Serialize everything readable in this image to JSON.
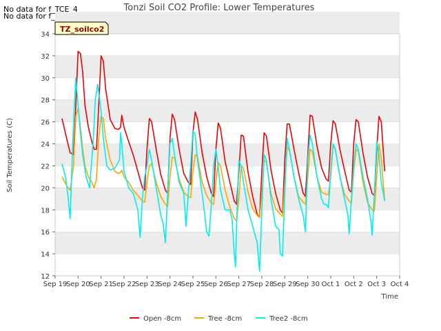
{
  "notes": [
    "No data for f_TCE_4",
    "No data for f_TCW_4"
  ],
  "site_label": "TZ_soilco2",
  "colors": {
    "open": "#ee0000",
    "tree": "#ffa500",
    "tree2": "#00eeee",
    "band": "#ececec",
    "grid": "#dcdcdc"
  },
  "chart_data": {
    "type": "line",
    "title": "Tonzi Soil CO2 Profile: Lower Temperatures",
    "xlabel": "Time",
    "ylabel": "Soil Temperatures (C)",
    "xlim": [
      0,
      15
    ],
    "ylim": [
      12,
      34
    ],
    "yticks": [
      12,
      14,
      16,
      18,
      20,
      22,
      24,
      26,
      28,
      30,
      32,
      34
    ],
    "xticks": [
      "Sep 19",
      "Sep 20",
      "Sep 21",
      "Sep 22",
      "Sep 23",
      "Sep 24",
      "Sep 25",
      "Sep 26",
      "Sep 27",
      "Sep 28",
      "Sep 29",
      "Sep 30",
      "Oct 1",
      "Oct 2",
      "Oct 3",
      "Oct 4"
    ],
    "grid": true,
    "legend_position": "bottom",
    "series": [
      {
        "name": "Open -8cm",
        "color": "#ee0000",
        "x": [
          0.3,
          0.5,
          0.65,
          0.8,
          0.9,
          1.0,
          1.1,
          1.2,
          1.3,
          1.45,
          1.6,
          1.7,
          1.8,
          1.9,
          2.0,
          2.1,
          2.2,
          2.4,
          2.6,
          2.75,
          2.85,
          2.9,
          3.0,
          3.2,
          3.4,
          3.6,
          3.8,
          3.9,
          4.0,
          4.1,
          4.2,
          4.4,
          4.6,
          4.8,
          4.9,
          5.0,
          5.1,
          5.2,
          5.4,
          5.6,
          5.8,
          5.9,
          6.0,
          6.1,
          6.2,
          6.4,
          6.6,
          6.8,
          6.9,
          7.0,
          7.1,
          7.2,
          7.4,
          7.6,
          7.8,
          7.9,
          8.0,
          8.1,
          8.2,
          8.4,
          8.6,
          8.8,
          8.9,
          9.0,
          9.1,
          9.2,
          9.4,
          9.6,
          9.8,
          9.9,
          10.0,
          10.1,
          10.2,
          10.4,
          10.6,
          10.8,
          10.9,
          11.0,
          11.1,
          11.2,
          11.4,
          11.6,
          11.8,
          11.9,
          12.0,
          12.1,
          12.2,
          12.4,
          12.6,
          12.8,
          12.9,
          13.0,
          13.1,
          13.2,
          13.4,
          13.6,
          13.8,
          13.9,
          14.0,
          14.1,
          14.2,
          14.35
        ],
        "y": [
          26.3,
          24.5,
          23.2,
          23.0,
          27.5,
          32.4,
          32.2,
          30.5,
          27.5,
          25.5,
          24.2,
          23.5,
          23.5,
          27.5,
          32.0,
          31.5,
          29.0,
          26.2,
          25.4,
          25.3,
          25.5,
          26.6,
          25.5,
          24.2,
          23.0,
          21.5,
          20.0,
          19.8,
          23.5,
          26.3,
          26.0,
          23.5,
          21.2,
          19.8,
          19.5,
          24.5,
          26.7,
          26.2,
          23.5,
          21.3,
          20.5,
          20.3,
          25.0,
          26.9,
          26.2,
          23.2,
          21.0,
          19.5,
          19.2,
          23.5,
          25.9,
          25.4,
          22.4,
          20.6,
          18.8,
          18.5,
          21.5,
          24.8,
          24.7,
          21.4,
          19.2,
          17.6,
          17.3,
          21.5,
          25.0,
          24.7,
          21.6,
          19.5,
          18.0,
          17.7,
          22.5,
          25.8,
          25.8,
          23.5,
          21.4,
          19.5,
          19.2,
          23.0,
          26.6,
          26.5,
          23.8,
          21.8,
          20.8,
          20.6,
          24.0,
          26.1,
          25.8,
          23.5,
          21.6,
          19.8,
          19.6,
          24.0,
          26.2,
          26.0,
          23.2,
          21.0,
          19.5,
          19.3,
          23.5,
          26.5,
          26.0,
          21.5
        ]
      },
      {
        "name": "Tree -8cm",
        "color": "#ffa500",
        "x": [
          0.3,
          0.5,
          0.65,
          0.8,
          0.9,
          1.0,
          1.1,
          1.2,
          1.3,
          1.45,
          1.6,
          1.7,
          1.8,
          1.9,
          2.0,
          2.1,
          2.2,
          2.4,
          2.6,
          2.75,
          2.85,
          2.9,
          3.0,
          3.2,
          3.4,
          3.6,
          3.8,
          3.9,
          4.0,
          4.1,
          4.2,
          4.4,
          4.6,
          4.8,
          4.9,
          5.0,
          5.1,
          5.2,
          5.4,
          5.6,
          5.8,
          5.9,
          6.0,
          6.1,
          6.2,
          6.4,
          6.6,
          6.8,
          6.9,
          7.0,
          7.1,
          7.2,
          7.4,
          7.6,
          7.8,
          7.9,
          8.0,
          8.1,
          8.2,
          8.4,
          8.6,
          8.8,
          8.9,
          9.0,
          9.1,
          9.2,
          9.4,
          9.6,
          9.8,
          9.9,
          10.0,
          10.1,
          10.2,
          10.4,
          10.6,
          10.8,
          10.9,
          11.0,
          11.1,
          11.2,
          11.4,
          11.6,
          11.8,
          11.9,
          12.0,
          12.1,
          12.2,
          12.4,
          12.6,
          12.8,
          12.9,
          13.0,
          13.1,
          13.2,
          13.4,
          13.6,
          13.8,
          13.9,
          14.0,
          14.1,
          14.2,
          14.35
        ],
        "y": [
          21.0,
          20.2,
          19.8,
          22.0,
          26.5,
          27.2,
          25.5,
          23.5,
          22.0,
          21.0,
          20.5,
          20.0,
          20.8,
          24.5,
          26.5,
          26.3,
          24.5,
          22.5,
          21.5,
          21.3,
          21.4,
          21.6,
          21.0,
          20.5,
          19.8,
          19.3,
          18.8,
          18.7,
          20.5,
          22.0,
          22.2,
          20.5,
          19.2,
          18.5,
          18.3,
          21.0,
          22.8,
          22.7,
          20.8,
          19.6,
          19.2,
          19.1,
          21.5,
          23.0,
          22.8,
          20.5,
          19.3,
          18.6,
          18.5,
          20.5,
          22.3,
          22.0,
          19.8,
          18.3,
          17.2,
          17.0,
          19.0,
          22.0,
          21.8,
          19.6,
          18.1,
          17.5,
          17.3,
          19.5,
          22.5,
          22.3,
          19.5,
          18.1,
          17.6,
          17.4,
          20.5,
          23.7,
          23.4,
          21.0,
          19.2,
          18.7,
          18.5,
          21.0,
          23.5,
          23.3,
          21.0,
          19.6,
          19.4,
          19.4,
          21.0,
          23.8,
          23.5,
          21.0,
          19.4,
          18.8,
          18.6,
          21.5,
          23.5,
          23.3,
          20.5,
          18.7,
          18.0,
          17.9,
          21.0,
          24.0,
          22.7,
          18.8
        ]
      },
      {
        "name": "Tree2 -8cm",
        "color": "#00eeee",
        "x": [
          0.3,
          0.45,
          0.55,
          0.65,
          0.7,
          0.8,
          0.9,
          1.0,
          1.1,
          1.2,
          1.35,
          1.5,
          1.65,
          1.75,
          1.85,
          2.0,
          2.1,
          2.25,
          2.4,
          2.6,
          2.8,
          2.85,
          2.9,
          3.0,
          3.2,
          3.4,
          3.6,
          3.7,
          3.8,
          3.9,
          4.0,
          4.1,
          4.2,
          4.4,
          4.6,
          4.7,
          4.8,
          4.9,
          5.0,
          5.1,
          5.2,
          5.4,
          5.6,
          5.7,
          5.8,
          5.9,
          6.0,
          6.1,
          6.2,
          6.4,
          6.6,
          6.7,
          6.8,
          6.9,
          7.0,
          7.1,
          7.2,
          7.4,
          7.6,
          7.7,
          7.8,
          7.85,
          7.9,
          8.0,
          8.1,
          8.2,
          8.4,
          8.6,
          8.8,
          8.9,
          9.0,
          9.1,
          9.2,
          9.4,
          9.6,
          9.75,
          9.8,
          9.9,
          10.0,
          10.1,
          10.2,
          10.4,
          10.6,
          10.8,
          10.9,
          11.0,
          11.1,
          11.2,
          11.4,
          11.6,
          11.7,
          11.8,
          11.9,
          12.0,
          12.1,
          12.2,
          12.4,
          12.6,
          12.75,
          12.8,
          12.9,
          13.0,
          13.1,
          13.2,
          13.4,
          13.6,
          13.75,
          13.8,
          13.9,
          14.0,
          14.1,
          14.2,
          14.35
        ],
        "y": [
          22.2,
          21.0,
          19.5,
          17.2,
          20.0,
          26.0,
          30.0,
          27.5,
          25.0,
          23.0,
          21.0,
          20.0,
          24.0,
          28.0,
          29.4,
          27.0,
          24.5,
          22.0,
          21.6,
          21.8,
          22.5,
          25.0,
          24.0,
          21.5,
          20.0,
          19.5,
          18.0,
          15.5,
          19.0,
          21.0,
          22.0,
          23.5,
          22.5,
          20.0,
          17.5,
          16.8,
          15.0,
          19.5,
          24.0,
          24.5,
          23.0,
          20.5,
          19.5,
          16.5,
          19.5,
          22.0,
          25.2,
          24.8,
          22.5,
          19.5,
          16.0,
          15.6,
          18.5,
          22.0,
          23.5,
          22.0,
          19.8,
          18.0,
          18.0,
          17.2,
          14.0,
          12.8,
          16.5,
          22.5,
          22.0,
          20.5,
          18.0,
          16.5,
          15.0,
          12.4,
          18.0,
          23.0,
          22.5,
          19.0,
          16.5,
          16.2,
          14.0,
          13.8,
          19.5,
          24.5,
          23.5,
          21.0,
          19.0,
          17.5,
          16.0,
          22.5,
          24.8,
          24.0,
          21.0,
          19.0,
          18.5,
          18.5,
          18.2,
          21.5,
          24.0,
          23.5,
          21.0,
          19.0,
          17.5,
          15.8,
          19.0,
          22.0,
          24.0,
          23.5,
          21.0,
          19.0,
          17.0,
          15.7,
          19.5,
          24.2,
          23.0,
          20.5,
          18.8
        ]
      }
    ]
  }
}
